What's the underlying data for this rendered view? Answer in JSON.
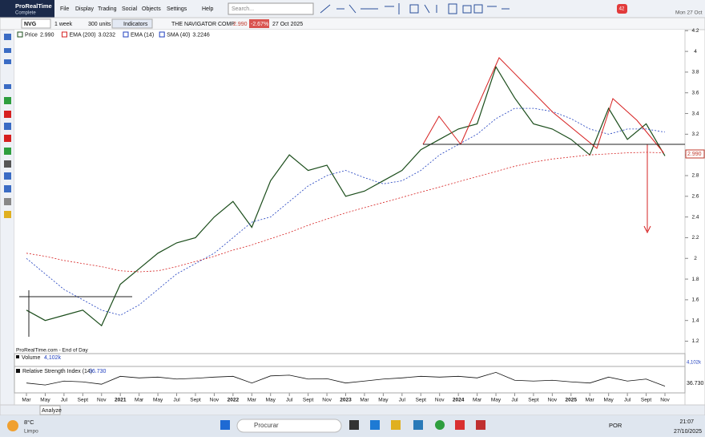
{
  "app": {
    "logo": "ProRealTime",
    "edition": "Complete",
    "menu": [
      "File",
      "Display",
      "Trading",
      "Social",
      "Objects",
      "Settings",
      "Help"
    ],
    "search_placeholder": "Search...",
    "date": "Mon 27 Oct",
    "badge": "42"
  },
  "toolbar": {
    "symbol": "NVG",
    "period": "1 week",
    "units": "300 units",
    "indicators": "Indicators",
    "name": "THE NAVIGATOR COMP",
    "price": "2.990",
    "change": "-2.67%",
    "date": "27 Oct 2025"
  },
  "legend": [
    {
      "name": "Price",
      "value": "2.990"
    },
    {
      "name": "EMA (200)",
      "value": "3.0232"
    },
    {
      "name": "EMA (14)"
    },
    {
      "name": "SMA (40)",
      "value": "3.2246"
    }
  ],
  "chart_data": {
    "type": "line",
    "source": "ProRealTime.com - End of Day",
    "categories": [
      "Mar",
      "May",
      "Jul",
      "Sept",
      "Nov",
      "2021",
      "Mar",
      "May",
      "Jul",
      "Sept",
      "Nov",
      "2022",
      "Mar",
      "May",
      "Jul",
      "Sept",
      "Nov",
      "2023",
      "Mar",
      "May",
      "Jul",
      "Sept",
      "Nov",
      "2024",
      "Mar",
      "May",
      "Jul",
      "Sept",
      "Nov",
      "2025",
      "Mar",
      "May",
      "Jul",
      "Sept",
      "Nov"
    ],
    "series": [
      {
        "name": "Price",
        "color": "#1b4d1b",
        "style": "solid",
        "values": [
          1.5,
          1.4,
          1.45,
          1.5,
          1.35,
          1.75,
          1.9,
          2.05,
          2.15,
          2.2,
          2.4,
          2.55,
          2.3,
          2.75,
          3.0,
          2.85,
          2.9,
          2.6,
          2.65,
          2.75,
          2.85,
          3.05,
          3.15,
          3.25,
          3.3,
          3.85,
          3.55,
          3.3,
          3.25,
          3.15,
          3.0,
          3.45,
          3.15,
          3.3,
          2.99
        ]
      },
      {
        "name": "SMA (40)",
        "color": "#1f3fbf",
        "style": "dashed",
        "values": [
          2.0,
          1.85,
          1.7,
          1.6,
          1.5,
          1.45,
          1.55,
          1.7,
          1.85,
          1.95,
          2.05,
          2.2,
          2.35,
          2.4,
          2.55,
          2.7,
          2.8,
          2.85,
          2.78,
          2.72,
          2.75,
          2.85,
          3.0,
          3.1,
          3.2,
          3.35,
          3.45,
          3.45,
          3.42,
          3.35,
          3.25,
          3.2,
          3.25,
          3.25,
          3.22
        ]
      },
      {
        "name": "EMA (200)",
        "color": "#d62020",
        "style": "dashed",
        "values": [
          2.05,
          2.02,
          1.98,
          1.95,
          1.92,
          1.88,
          1.87,
          1.88,
          1.92,
          1.97,
          2.02,
          2.08,
          2.13,
          2.19,
          2.25,
          2.32,
          2.38,
          2.44,
          2.49,
          2.54,
          2.59,
          2.64,
          2.69,
          2.74,
          2.79,
          2.84,
          2.89,
          2.93,
          2.96,
          2.98,
          3.0,
          3.01,
          3.02,
          3.025,
          3.02
        ]
      }
    ],
    "ylim": [
      1.08,
      4.21
    ],
    "yticks": [
      1.2,
      1.4,
      1.6,
      1.8,
      2,
      2.2,
      2.4,
      2.6,
      2.8,
      3,
      3.2,
      3.4,
      3.6,
      3.8,
      4,
      4.2
    ]
  },
  "volume": {
    "label": "Volume",
    "value": "4,102k"
  },
  "rsi": {
    "label": "Relative Strength Index (14)",
    "value": "36.730",
    "ylim": [
      20,
      85
    ],
    "values": [
      45,
      40,
      50,
      48,
      42,
      62,
      58,
      60,
      55,
      57,
      60,
      62,
      45,
      63,
      65,
      55,
      56,
      45,
      50,
      55,
      58,
      62,
      60,
      62,
      58,
      72,
      52,
      50,
      52,
      48,
      45,
      60,
      50,
      55,
      37
    ]
  },
  "status": {
    "analyze": "Analyze"
  },
  "taskbar": {
    "temp": "8°C",
    "weather": "Limpo",
    "search": "Procurar",
    "lang": "POR",
    "time": "21:07",
    "date": "27/10/2025"
  }
}
